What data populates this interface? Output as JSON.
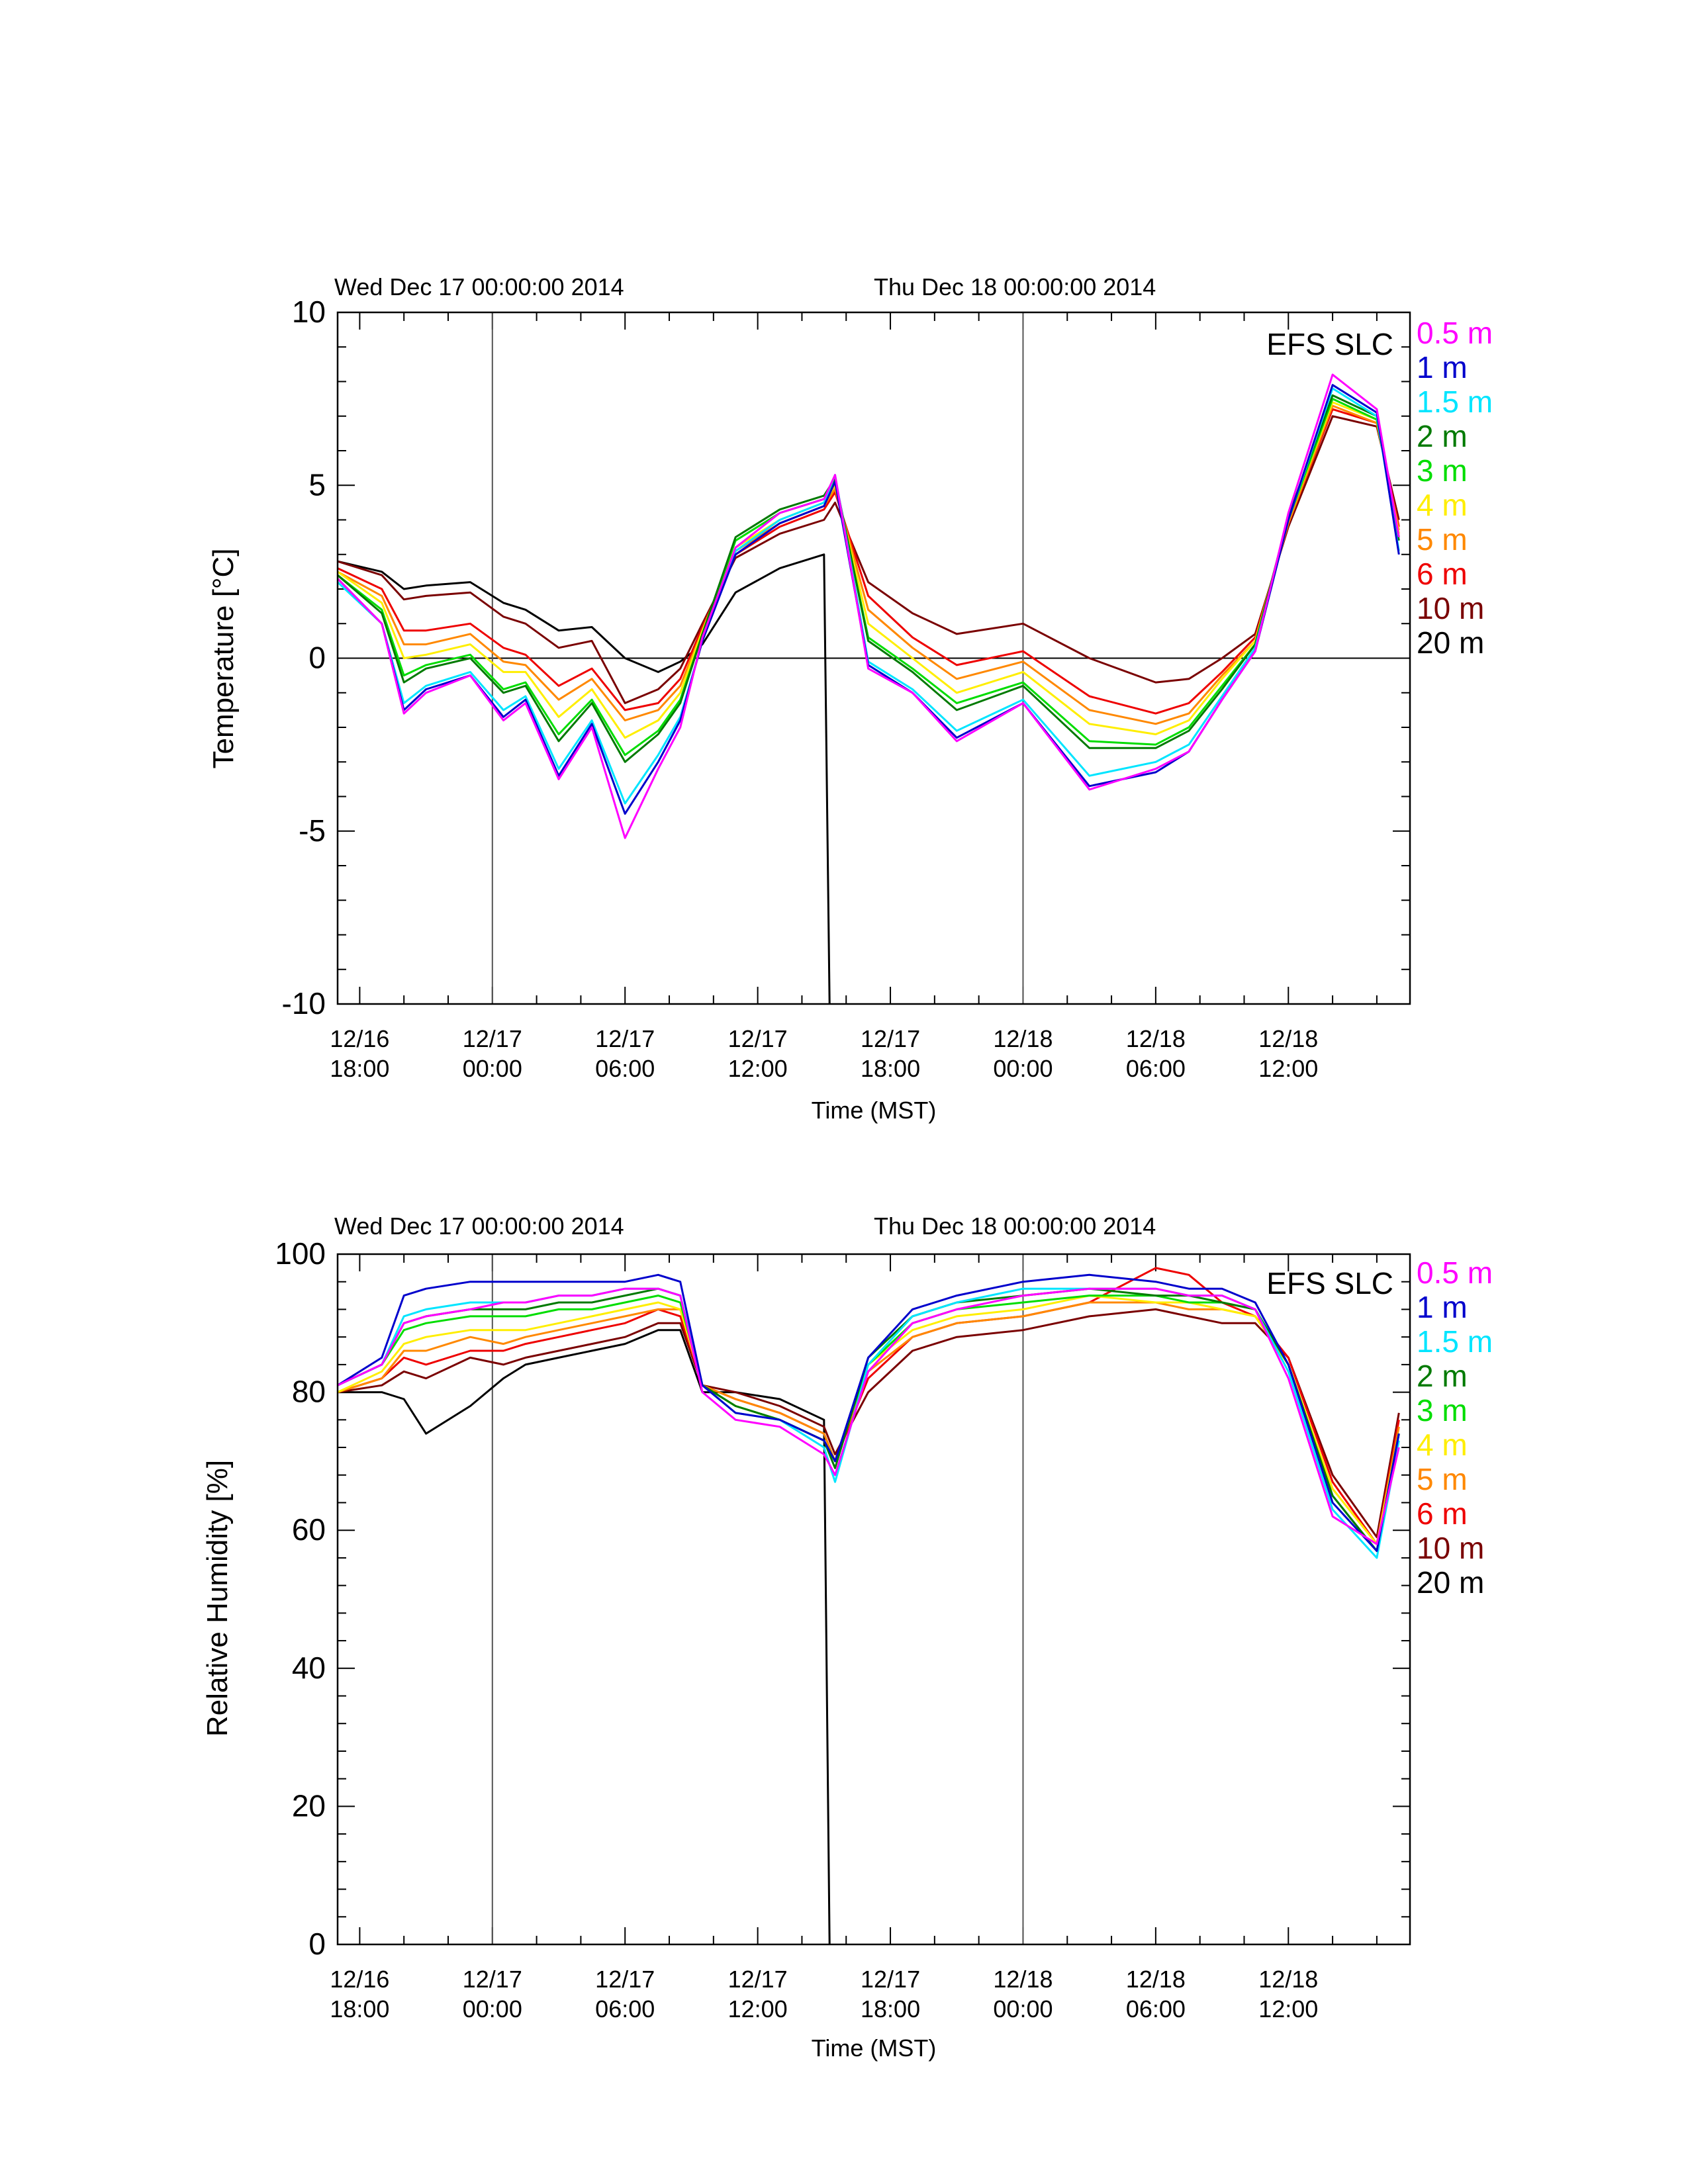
{
  "colors": {
    "0.5 m": "#ff00ff",
    "1 m": "#0000cc",
    "1.5 m": "#00e5ff",
    "2 m": "#007a00",
    "3 m": "#00dd00",
    "4 m": "#ffee00",
    "5 m": "#ff8800",
    "6 m": "#ee0000",
    "10 m": "#7a0000",
    "20 m": "#000000"
  },
  "chart_data": [
    {
      "type": "line",
      "station_label": "EFS SLC",
      "day_markers": [
        "Wed Dec 17 00:00:00 2014",
        "Thu Dec 18 00:00:00 2014"
      ],
      "day_marker_times": [
        "2014-12-17T00:00",
        "2014-12-18T00:00"
      ],
      "xlabel": "Time (MST)",
      "ylabel": "Temperature [°C]",
      "xlim": [
        "2014-12-16T17:00",
        "2014-12-18T17:30"
      ],
      "ylim": [
        -10,
        10
      ],
      "yticks": [
        -10,
        -5,
        0,
        5,
        10
      ],
      "xticks": [
        {
          "t": "2014-12-16T18:00",
          "line1": "12/16",
          "line2": "18:00"
        },
        {
          "t": "2014-12-17T00:00",
          "line1": "12/17",
          "line2": "00:00"
        },
        {
          "t": "2014-12-17T06:00",
          "line1": "12/17",
          "line2": "06:00"
        },
        {
          "t": "2014-12-17T12:00",
          "line1": "12/17",
          "line2": "12:00"
        },
        {
          "t": "2014-12-17T18:00",
          "line1": "12/17",
          "line2": "18:00"
        },
        {
          "t": "2014-12-18T00:00",
          "line1": "12/18",
          "line2": "00:00"
        },
        {
          "t": "2014-12-18T06:00",
          "line1": "12/18",
          "line2": "06:00"
        },
        {
          "t": "2014-12-18T12:00",
          "line1": "12/18",
          "line2": "12:00"
        }
      ],
      "zero_line": 0,
      "legend": [
        "0.5 m",
        "1 m",
        "1.5 m",
        "2 m",
        "3 m",
        "4 m",
        "5 m",
        "6 m",
        "10 m",
        "20 m"
      ],
      "x": [
        "2014-12-16T17:00",
        "2014-12-16T19:00",
        "2014-12-16T20:00",
        "2014-12-16T21:00",
        "2014-12-16T23:00",
        "2014-12-17T00:30",
        "2014-12-17T01:30",
        "2014-12-17T03:00",
        "2014-12-17T04:30",
        "2014-12-17T06:00",
        "2014-12-17T07:30",
        "2014-12-17T08:30",
        "2014-12-17T09:30",
        "2014-12-17T11:00",
        "2014-12-17T13:00",
        "2014-12-17T15:00",
        "2014-12-17T15:30",
        "2014-12-17T17:00",
        "2014-12-17T19:00",
        "2014-12-17T21:00",
        "2014-12-18T00:00",
        "2014-12-18T03:00",
        "2014-12-18T06:00",
        "2014-12-18T07:30",
        "2014-12-18T09:00",
        "2014-12-18T10:30",
        "2014-12-18T12:00",
        "2014-12-18T14:00",
        "2014-12-18T16:00",
        "2014-12-18T17:00"
      ],
      "series": [
        {
          "name": "0.5 m",
          "values": [
            2.3,
            1.0,
            -1.6,
            -1.0,
            -0.5,
            -1.8,
            -1.3,
            -3.5,
            -2.0,
            -5.2,
            -3.2,
            -2.0,
            0.6,
            3.2,
            4.2,
            4.6,
            5.3,
            -0.3,
            -1.0,
            -2.4,
            -1.3,
            -3.8,
            -3.2,
            -2.7,
            -1.2,
            0.2,
            4.2,
            8.2,
            7.2,
            3.5
          ]
        },
        {
          "name": "1 m",
          "values": [
            2.3,
            1.0,
            -1.5,
            -0.9,
            -0.5,
            -1.7,
            -1.2,
            -3.4,
            -1.9,
            -4.5,
            -3.0,
            -1.8,
            0.5,
            3.0,
            3.9,
            4.4,
            5.1,
            -0.2,
            -1.0,
            -2.3,
            -1.3,
            -3.7,
            -3.3,
            -2.7,
            -1.2,
            0.2,
            4.0,
            7.9,
            7.1,
            3.0
          ]
        },
        {
          "name": "1.5 m",
          "values": [
            2.2,
            1.0,
            -1.3,
            -0.8,
            -0.4,
            -1.5,
            -1.1,
            -3.2,
            -1.8,
            -4.2,
            -2.8,
            -1.7,
            0.5,
            3.1,
            4.0,
            4.5,
            5.3,
            -0.1,
            -0.9,
            -2.1,
            -1.2,
            -3.4,
            -3.0,
            -2.5,
            -1.1,
            0.3,
            4.0,
            7.8,
            7.0,
            3.1
          ]
        },
        {
          "name": "2 m",
          "values": [
            2.4,
            1.3,
            -0.7,
            -0.3,
            0.0,
            -1.0,
            -0.8,
            -2.4,
            -1.3,
            -3.0,
            -2.2,
            -1.3,
            0.7,
            3.5,
            4.3,
            4.7,
            5.2,
            0.5,
            -0.4,
            -1.5,
            -0.8,
            -2.6,
            -2.6,
            -2.1,
            -0.9,
            0.4,
            4.1,
            7.6,
            7.0,
            3.4
          ]
        },
        {
          "name": "3 m",
          "values": [
            2.4,
            1.4,
            -0.5,
            -0.2,
            0.1,
            -0.9,
            -0.7,
            -2.2,
            -1.2,
            -2.8,
            -2.1,
            -1.2,
            0.7,
            3.4,
            4.2,
            4.6,
            5.1,
            0.6,
            -0.3,
            -1.3,
            -0.7,
            -2.4,
            -2.5,
            -2.0,
            -0.8,
            0.4,
            4.0,
            7.5,
            6.9,
            3.5
          ]
        },
        {
          "name": "4 m",
          "values": [
            2.5,
            1.6,
            0.0,
            0.1,
            0.4,
            -0.4,
            -0.4,
            -1.7,
            -0.9,
            -2.3,
            -1.8,
            -1.0,
            0.8,
            3.2,
            4.0,
            4.5,
            5.0,
            1.0,
            0.0,
            -1.0,
            -0.4,
            -1.9,
            -2.2,
            -1.8,
            -0.6,
            0.5,
            4.0,
            7.4,
            6.9,
            3.6
          ]
        },
        {
          "name": "5 m",
          "values": [
            2.5,
            1.8,
            0.4,
            0.4,
            0.7,
            -0.1,
            -0.2,
            -1.2,
            -0.6,
            -1.8,
            -1.5,
            -0.8,
            0.8,
            3.1,
            3.9,
            4.4,
            4.9,
            1.4,
            0.3,
            -0.6,
            -0.1,
            -1.5,
            -1.9,
            -1.6,
            -0.5,
            0.5,
            3.9,
            7.3,
            6.8,
            3.7
          ]
        },
        {
          "name": "6 m",
          "values": [
            2.6,
            2.0,
            0.8,
            0.8,
            1.0,
            0.3,
            0.1,
            -0.8,
            -0.3,
            -1.5,
            -1.3,
            -0.6,
            0.9,
            3.0,
            3.8,
            4.3,
            4.8,
            1.8,
            0.6,
            -0.2,
            0.2,
            -1.1,
            -1.6,
            -1.3,
            -0.4,
            0.6,
            3.9,
            7.2,
            6.8,
            3.8
          ]
        },
        {
          "name": "10 m",
          "values": [
            2.8,
            2.4,
            1.7,
            1.8,
            1.9,
            1.2,
            1.0,
            0.3,
            0.5,
            -1.3,
            -0.9,
            -0.3,
            1.0,
            2.9,
            3.6,
            4.0,
            4.5,
            2.2,
            1.3,
            0.7,
            1.0,
            0.0,
            -0.7,
            -0.6,
            0.0,
            0.7,
            3.8,
            7.0,
            6.7,
            4.0
          ]
        },
        {
          "name": "20 m",
          "values": [
            2.8,
            2.5,
            2.0,
            2.1,
            2.2,
            1.6,
            1.4,
            0.8,
            0.9,
            0.0,
            -0.4,
            -0.1,
            0.4,
            1.9,
            2.6,
            3.0,
            null,
            null,
            null,
            null,
            null,
            null,
            null,
            null,
            null,
            null,
            null,
            null,
            null,
            null
          ]
        }
      ],
      "dropout": {
        "series": "20 m",
        "time": "2014-12-17T15:15",
        "value": -10
      }
    },
    {
      "type": "line",
      "station_label": "EFS SLC",
      "day_markers": [
        "Wed Dec 17 00:00:00 2014",
        "Thu Dec 18 00:00:00 2014"
      ],
      "day_marker_times": [
        "2014-12-17T00:00",
        "2014-12-18T00:00"
      ],
      "xlabel": "Time (MST)",
      "ylabel": "Relative Humidity [%]",
      "xlim": [
        "2014-12-16T17:00",
        "2014-12-18T17:30"
      ],
      "ylim": [
        0,
        100
      ],
      "yticks": [
        0,
        20,
        40,
        60,
        80,
        100
      ],
      "xticks": [
        {
          "t": "2014-12-16T18:00",
          "line1": "12/16",
          "line2": "18:00"
        },
        {
          "t": "2014-12-17T00:00",
          "line1": "12/17",
          "line2": "00:00"
        },
        {
          "t": "2014-12-17T06:00",
          "line1": "12/17",
          "line2": "06:00"
        },
        {
          "t": "2014-12-17T12:00",
          "line1": "12/17",
          "line2": "12:00"
        },
        {
          "t": "2014-12-17T18:00",
          "line1": "12/17",
          "line2": "18:00"
        },
        {
          "t": "2014-12-18T00:00",
          "line1": "12/18",
          "line2": "00:00"
        },
        {
          "t": "2014-12-18T06:00",
          "line1": "12/18",
          "line2": "06:00"
        },
        {
          "t": "2014-12-18T12:00",
          "line1": "12/18",
          "line2": "12:00"
        }
      ],
      "zero_line": null,
      "legend": [
        "0.5 m",
        "1 m",
        "1.5 m",
        "2 m",
        "3 m",
        "4 m",
        "5 m",
        "6 m",
        "10 m",
        "20 m"
      ],
      "x": [
        "2014-12-16T17:00",
        "2014-12-16T19:00",
        "2014-12-16T20:00",
        "2014-12-16T21:00",
        "2014-12-16T23:00",
        "2014-12-17T00:30",
        "2014-12-17T01:30",
        "2014-12-17T03:00",
        "2014-12-17T04:30",
        "2014-12-17T06:00",
        "2014-12-17T07:30",
        "2014-12-17T08:30",
        "2014-12-17T09:30",
        "2014-12-17T11:00",
        "2014-12-17T13:00",
        "2014-12-17T15:00",
        "2014-12-17T15:30",
        "2014-12-17T17:00",
        "2014-12-17T19:00",
        "2014-12-17T21:00",
        "2014-12-18T00:00",
        "2014-12-18T03:00",
        "2014-12-18T06:00",
        "2014-12-18T07:30",
        "2014-12-18T09:00",
        "2014-12-18T10:30",
        "2014-12-18T12:00",
        "2014-12-18T14:00",
        "2014-12-18T16:00",
        "2014-12-18T17:00"
      ],
      "series": [
        {
          "name": "0.5 m",
          "values": [
            81,
            84,
            90,
            91,
            92,
            93,
            93,
            94,
            94,
            95,
            95,
            94,
            80,
            76,
            75,
            71,
            68,
            83,
            90,
            92,
            94,
            95,
            95,
            94,
            94,
            92,
            82,
            62,
            58,
            72
          ]
        },
        {
          "name": "1 m",
          "values": [
            81,
            85,
            94,
            95,
            96,
            96,
            96,
            96,
            96,
            96,
            97,
            96,
            81,
            77,
            76,
            73,
            70,
            85,
            92,
            94,
            96,
            97,
            96,
            95,
            95,
            93,
            84,
            64,
            57,
            74
          ]
        },
        {
          "name": "1.5 m",
          "values": [
            81,
            84,
            91,
            92,
            93,
            93,
            93,
            94,
            94,
            95,
            95,
            94,
            81,
            77,
            76,
            72,
            67,
            84,
            91,
            93,
            95,
            95,
            95,
            94,
            94,
            92,
            83,
            63,
            56,
            73
          ]
        },
        {
          "name": "2 m",
          "values": [
            81,
            84,
            90,
            91,
            92,
            92,
            92,
            93,
            93,
            94,
            95,
            94,
            81,
            78,
            76,
            73,
            69,
            85,
            91,
            93,
            94,
            95,
            94,
            94,
            93,
            92,
            84,
            65,
            57,
            74
          ]
        },
        {
          "name": "3 m",
          "values": [
            81,
            84,
            89,
            90,
            91,
            91,
            91,
            92,
            92,
            93,
            94,
            93,
            81,
            78,
            76,
            73,
            70,
            84,
            90,
            92,
            93,
            94,
            94,
            93,
            93,
            92,
            84,
            65,
            57,
            74
          ]
        },
        {
          "name": "4 m",
          "values": [
            80,
            83,
            87,
            88,
            89,
            89,
            89,
            90,
            91,
            92,
            93,
            92,
            81,
            78,
            76,
            73,
            70,
            84,
            89,
            91,
            92,
            94,
            93,
            93,
            92,
            91,
            84,
            66,
            58,
            74
          ]
        },
        {
          "name": "5 m",
          "values": [
            80,
            82,
            86,
            86,
            88,
            87,
            88,
            89,
            90,
            91,
            92,
            92,
            81,
            79,
            77,
            74,
            70,
            83,
            88,
            90,
            91,
            93,
            93,
            92,
            92,
            91,
            84,
            66,
            58,
            75
          ]
        },
        {
          "name": "6 m",
          "values": [
            80,
            82,
            85,
            84,
            86,
            86,
            87,
            88,
            89,
            90,
            92,
            91,
            81,
            79,
            77,
            74,
            70,
            82,
            88,
            90,
            91,
            93,
            98,
            97,
            93,
            91,
            85,
            67,
            58,
            76
          ]
        },
        {
          "name": "10 m",
          "values": [
            80,
            81,
            83,
            82,
            85,
            84,
            85,
            86,
            87,
            88,
            90,
            90,
            81,
            80,
            78,
            75,
            71,
            80,
            86,
            88,
            89,
            91,
            92,
            91,
            90,
            90,
            85,
            68,
            59,
            77
          ]
        },
        {
          "name": "20 m",
          "values": [
            80,
            80,
            79,
            74,
            78,
            82,
            84,
            85,
            86,
            87,
            89,
            89,
            80,
            80,
            79,
            76,
            null,
            null,
            null,
            null,
            null,
            null,
            null,
            null,
            null,
            null,
            null,
            null,
            null,
            null
          ]
        }
      ],
      "dropout": {
        "series": "20 m",
        "time": "2014-12-17T15:15",
        "value": 0
      }
    }
  ]
}
